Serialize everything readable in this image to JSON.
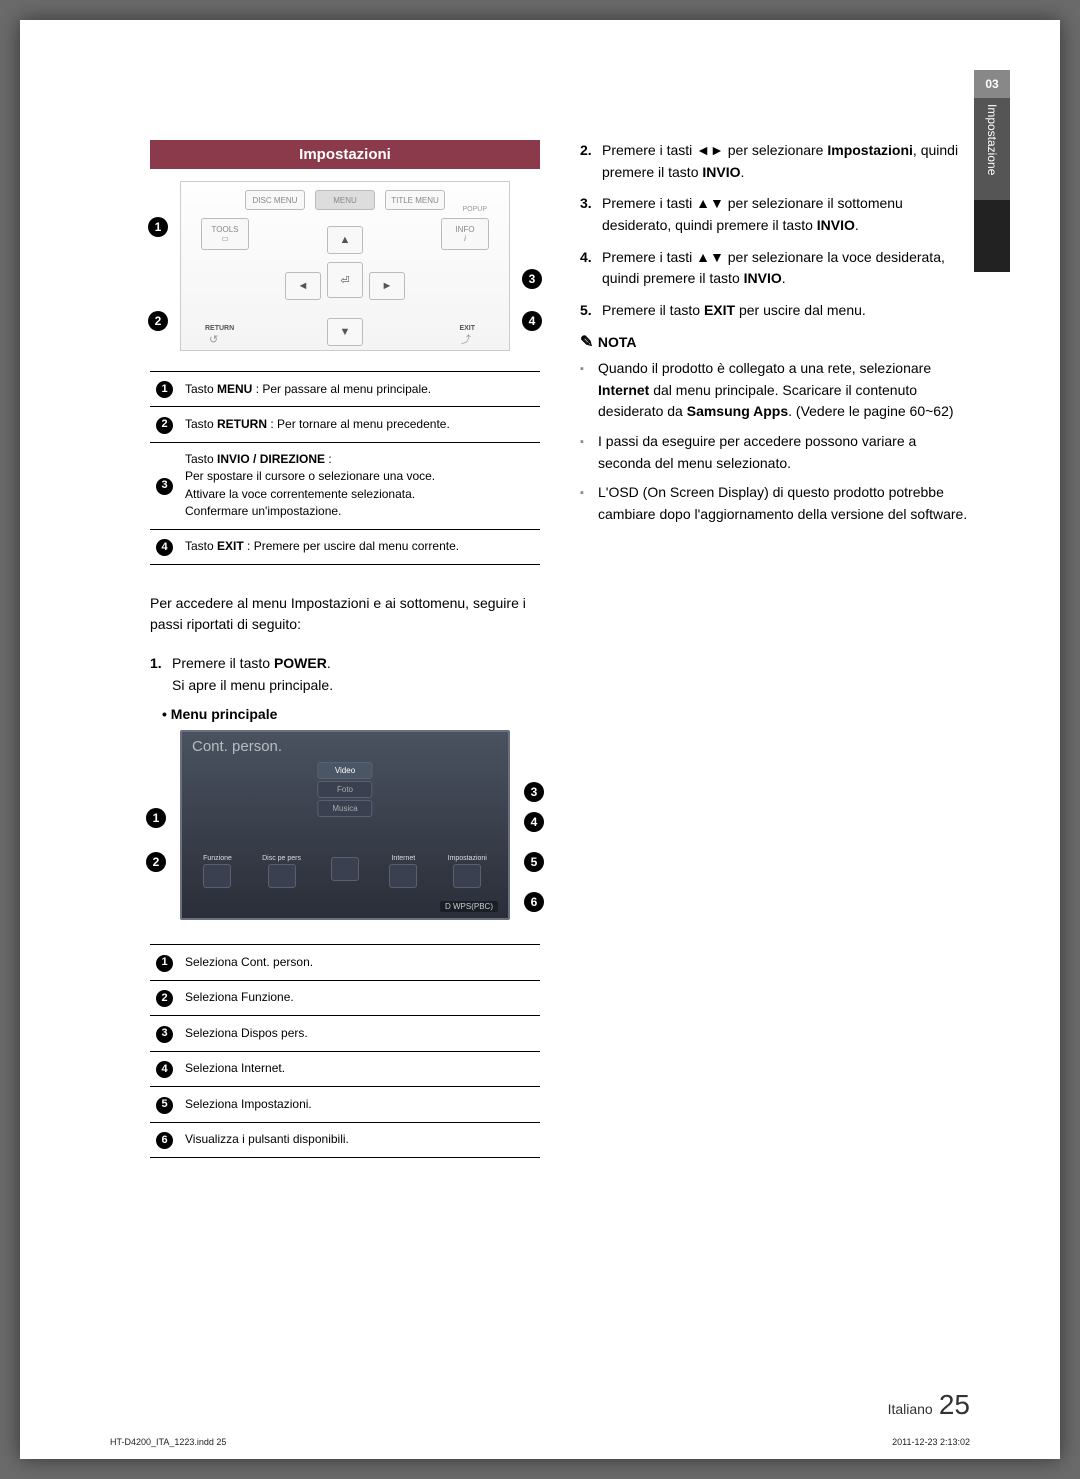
{
  "side": {
    "number": "03",
    "label": "Impostazione"
  },
  "section_title": "Impostazioni",
  "remote": {
    "top": {
      "disc_menu": "DISC MENU",
      "menu": "MENU",
      "title_menu": "TITLE MENU",
      "popup": "POPUP"
    },
    "mid": {
      "tools": "TOOLS",
      "info": "INFO"
    },
    "bottom": {
      "return": "RETURN",
      "exit": "EXIT"
    }
  },
  "remote_callouts": [
    "1",
    "2",
    "3",
    "4"
  ],
  "legend1": [
    {
      "n": "1",
      "html": "Tasto <b>MENU</b> : Per passare al menu principale."
    },
    {
      "n": "2",
      "html": "Tasto <b>RETURN</b> : Per tornare al menu precedente."
    },
    {
      "n": "3",
      "html": "Tasto <b>INVIO / DIREZIONE</b> :<br>Per spostare il cursore o selezionare una voce.<br>Attivare la voce correntemente selezionata.<br>Confermare un'impostazione."
    },
    {
      "n": "4",
      "html": "Tasto <b>EXIT</b> : Premere per uscire dal menu corrente."
    }
  ],
  "intro_para": "Per accedere al menu Impostazioni e ai sottomenu, seguire i passi riportati di seguito:",
  "step1_html": "Premere il tasto <b>POWER</b>.<br>Si apre il menu principale.",
  "menu_bullet": "• Menu principale",
  "menu_head": "Cont. person.",
  "menu_items": {
    "video": "Video",
    "foto": "Foto",
    "musica": "Musica"
  },
  "menu_row": [
    "Funzione",
    "Disc pe pers",
    "",
    "Internet",
    "Impostazioni"
  ],
  "menu_wps": "D WPS(PBC)",
  "menu_callouts": [
    "1",
    "2",
    "3",
    "4",
    "5",
    "6"
  ],
  "legend2": [
    {
      "n": "1",
      "t": "Seleziona Cont. person."
    },
    {
      "n": "2",
      "t": "Seleziona Funzione."
    },
    {
      "n": "3",
      "t": "Seleziona Dispos pers."
    },
    {
      "n": "4",
      "t": "Seleziona Internet."
    },
    {
      "n": "5",
      "t": "Seleziona Impostazioni."
    },
    {
      "n": "6",
      "t": "Visualizza i pulsanti disponibili."
    }
  ],
  "right_steps": [
    {
      "n": "2.",
      "html": "Premere i tasti ◄► per selezionare <b>Impostazioni</b>, quindi premere il tasto <b>INVIO</b>."
    },
    {
      "n": "3.",
      "html": "Premere i tasti ▲▼ per selezionare il sottomenu desiderato, quindi premere il tasto <b>INVIO</b>."
    },
    {
      "n": "4.",
      "html": "Premere i tasti ▲▼ per selezionare la voce desiderata, quindi premere il tasto <b>INVIO</b>."
    },
    {
      "n": "5.",
      "html": "Premere il tasto <b>EXIT</b> per uscire dal menu."
    }
  ],
  "nota_title": "NOTA",
  "nota": [
    "Quando il prodotto è collegato a una rete, selezionare <b>Internet</b> dal menu principale. Scaricare il contenuto desiderato da <b>Samsung Apps</b>. (Vedere le pagine 60~62)",
    "I passi da eseguire per accedere possono variare a seconda del menu selezionato.",
    "L'OSD (On Screen Display) di questo prodotto potrebbe cambiare dopo l'aggiornamento della versione del software."
  ],
  "footer": {
    "lang": "Italiano",
    "page": "25"
  },
  "indd": {
    "left": "HT-D4200_ITA_1223.indd   25",
    "right": "2011-12-23   2:13:02"
  }
}
